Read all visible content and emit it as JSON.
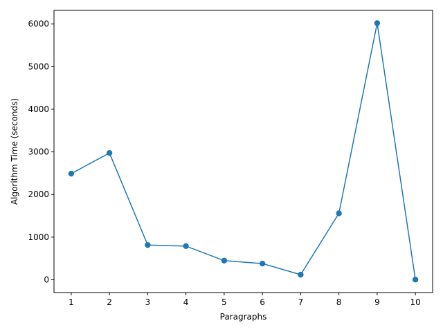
{
  "chart_data": {
    "type": "line",
    "xlabel": "Paragraphs",
    "ylabel": "Algorithm Time (seconds)",
    "x": [
      1,
      2,
      3,
      4,
      5,
      6,
      7,
      8,
      9,
      10
    ],
    "series": [
      {
        "values": [
          2490,
          2975,
          815,
          790,
          450,
          380,
          120,
          1560,
          6020,
          5
        ],
        "color": "#1f77b4",
        "marker": "circle"
      }
    ],
    "xlim": [
      0.55,
      10.45
    ],
    "ylim": [
      -300,
      6320
    ],
    "xticks": [
      1,
      2,
      3,
      4,
      5,
      6,
      7,
      8,
      9,
      10
    ],
    "yticks": [
      0,
      1000,
      2000,
      3000,
      4000,
      5000,
      6000
    ],
    "grid": false,
    "legend": "none"
  }
}
